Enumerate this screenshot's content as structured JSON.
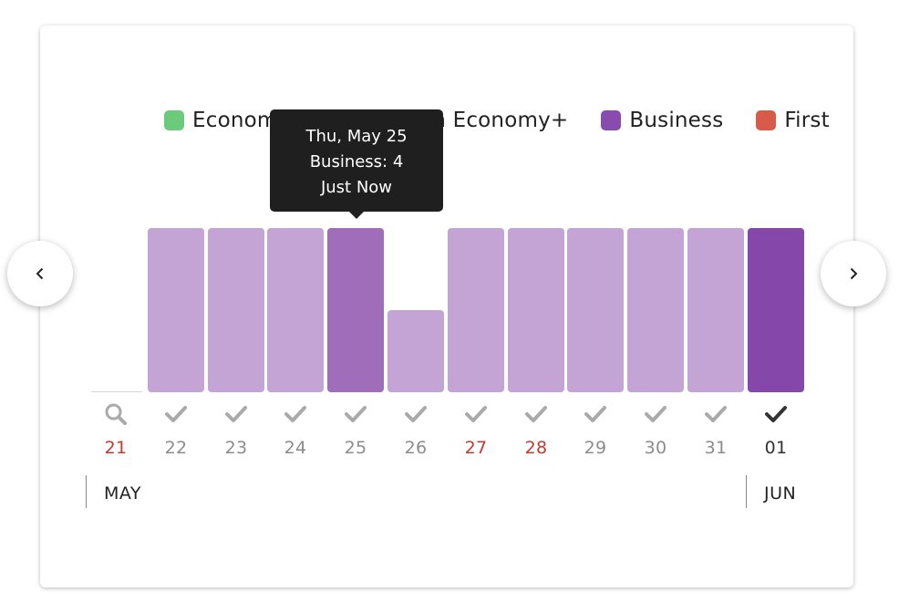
{
  "legend": [
    {
      "label": "Economy",
      "color": "#6ccb7a"
    },
    {
      "label": "Premium Economy+",
      "color": "#3bb3a8"
    },
    {
      "label": "Business",
      "color": "#8a4bb0"
    },
    {
      "label": "First",
      "color": "#d95a49"
    }
  ],
  "tooltip": {
    "line1": "Thu, May 25",
    "line2": "Business: 4",
    "line3": "Just Now"
  },
  "nav": {
    "prev_icon": "chevron-left-icon",
    "next_icon": "chevron-right-icon"
  },
  "chart_data": {
    "type": "bar",
    "categories": [
      "21",
      "22",
      "23",
      "24",
      "25",
      "26",
      "27",
      "28",
      "29",
      "30",
      "31",
      "01"
    ],
    "values": [
      0,
      4,
      4,
      4,
      4,
      2,
      4,
      4,
      4,
      4,
      4,
      4
    ],
    "ylim": [
      0,
      4
    ],
    "title": "",
    "xlabel": "",
    "ylabel": "",
    "legend_position": "top",
    "colors": {
      "normal": "#c3a4d4",
      "hovered": "#9f6db9",
      "selected": "#8547a9",
      "weekend_label": "#c43a2c",
      "default_label": "#8c8c8c",
      "selected_label": "#333333"
    },
    "status_icons": [
      "search-icon",
      "check-icon",
      "check-icon",
      "check-icon",
      "check-icon",
      "check-icon",
      "check-icon",
      "check-icon",
      "check-icon",
      "check-icon",
      "check-icon",
      "check-icon"
    ],
    "highlighted_index": 4,
    "selected_index": 11,
    "weekend_indices": [
      0,
      6,
      7
    ],
    "months": [
      {
        "label": "MAY",
        "start_index": 0
      },
      {
        "label": "JUN",
        "start_index": 11
      }
    ]
  }
}
